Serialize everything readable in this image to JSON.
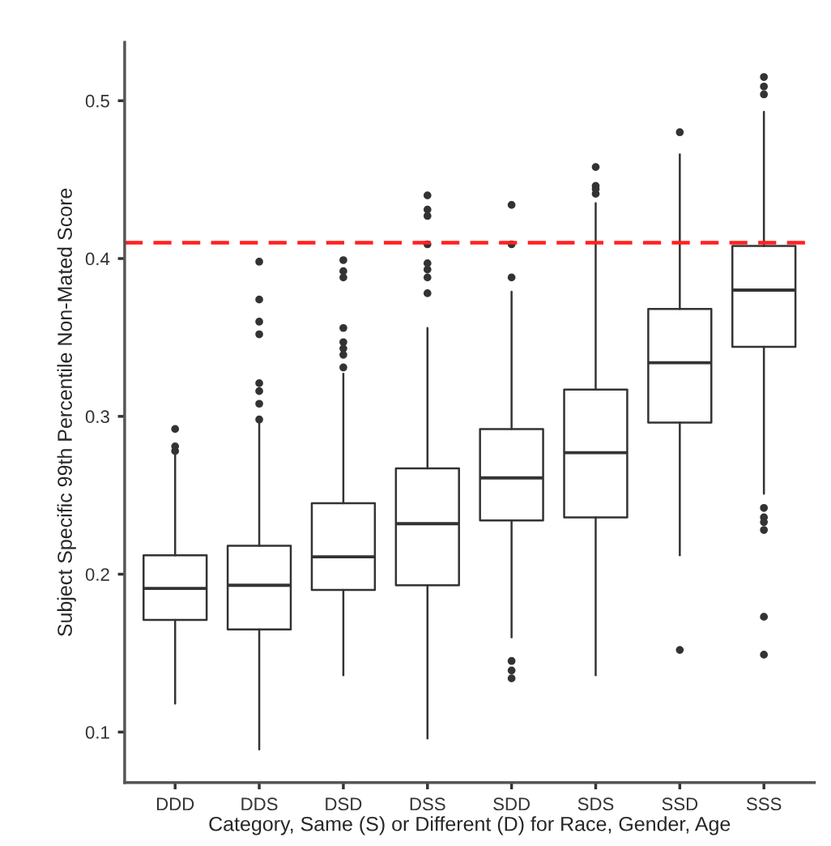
{
  "chart_data": {
    "type": "box",
    "xlabel": "Category, Same (S) or Different (D) for Race, Gender, Age",
    "ylabel": "Subject Specific 99th Percentile Non-Mated Score",
    "categories": [
      "DDD",
      "DDS",
      "DSD",
      "DSS",
      "SDD",
      "SDS",
      "SSD",
      "SSS"
    ],
    "boxes": [
      {
        "low": 0.118,
        "q1": 0.171,
        "median": 0.191,
        "q3": 0.212,
        "high": 0.276,
        "outliers": [
          0.278,
          0.281,
          0.292
        ]
      },
      {
        "low": 0.089,
        "q1": 0.165,
        "median": 0.193,
        "q3": 0.218,
        "high": 0.296,
        "outliers": [
          0.298,
          0.308,
          0.316,
          0.321,
          0.352,
          0.36,
          0.374,
          0.398
        ]
      },
      {
        "low": 0.136,
        "q1": 0.19,
        "median": 0.211,
        "q3": 0.245,
        "high": 0.327,
        "outliers": [
          0.331,
          0.339,
          0.343,
          0.347,
          0.356,
          0.388,
          0.392,
          0.399
        ]
      },
      {
        "low": 0.096,
        "q1": 0.193,
        "median": 0.232,
        "q3": 0.267,
        "high": 0.356,
        "outliers": [
          0.378,
          0.388,
          0.393,
          0.397,
          0.409,
          0.427,
          0.431,
          0.44
        ]
      },
      {
        "low": 0.16,
        "q1": 0.234,
        "median": 0.261,
        "q3": 0.292,
        "high": 0.379,
        "outliers": [
          0.134,
          0.139,
          0.145,
          0.388,
          0.409,
          0.434
        ]
      },
      {
        "low": 0.136,
        "q1": 0.236,
        "median": 0.277,
        "q3": 0.317,
        "high": 0.435,
        "outliers": [
          0.441,
          0.444,
          0.446,
          0.458
        ]
      },
      {
        "low": 0.212,
        "q1": 0.296,
        "median": 0.334,
        "q3": 0.368,
        "high": 0.466,
        "outliers": [
          0.152,
          0.48
        ]
      },
      {
        "low": 0.251,
        "q1": 0.344,
        "median": 0.38,
        "q3": 0.408,
        "high": 0.493,
        "outliers": [
          0.149,
          0.173,
          0.228,
          0.233,
          0.236,
          0.242,
          0.504,
          0.509,
          0.515
        ]
      }
    ],
    "ylim": [
      0.068,
      0.537
    ],
    "yticks": [
      0.1,
      0.2,
      0.3,
      0.4,
      0.5
    ],
    "ref_lines": [
      {
        "axis": "y",
        "value": 0.41,
        "label": null,
        "color": "#ff2020",
        "line_style": "dashed"
      }
    ],
    "grid": false,
    "legend": false
  }
}
